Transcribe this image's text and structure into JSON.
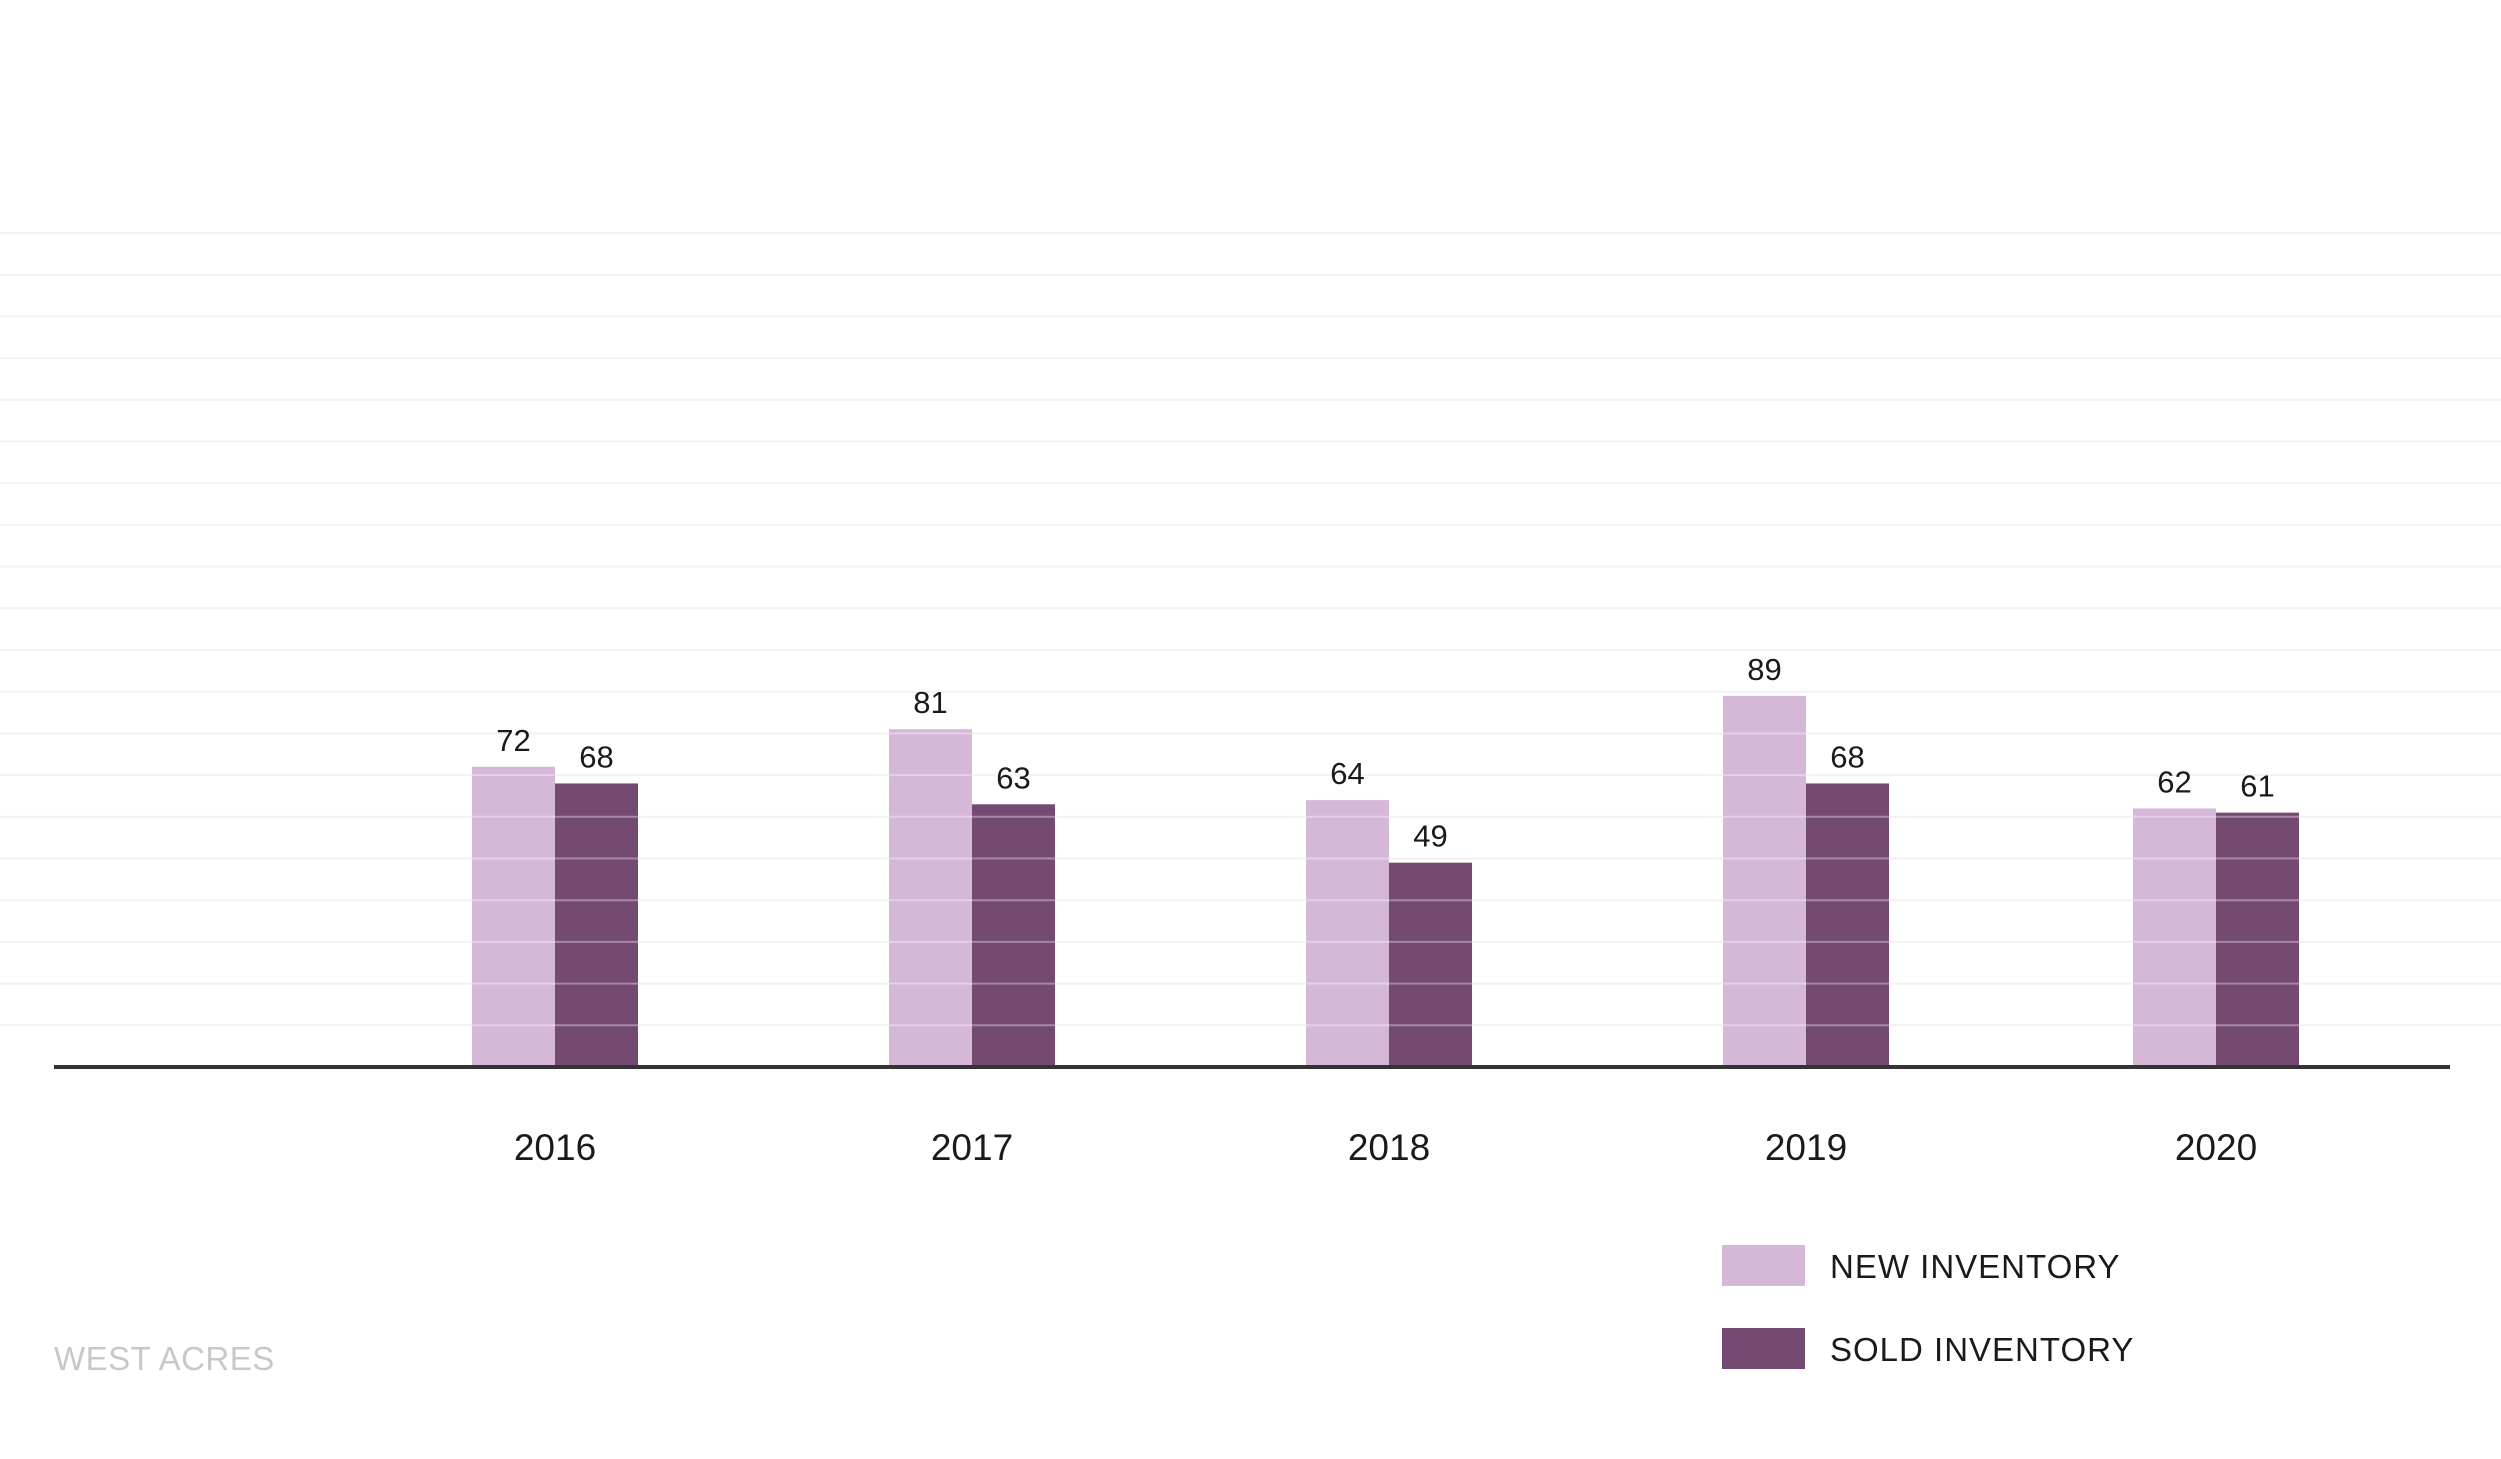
{
  "chart_data": {
    "type": "bar",
    "categories": [
      "2016",
      "2017",
      "2018",
      "2019",
      "2020"
    ],
    "series": [
      {
        "name": "NEW INVENTORY",
        "values": [
          72,
          81,
          64,
          89,
          62
        ],
        "color": "#d5b8d8"
      },
      {
        "name": "SOLD INVENTORY",
        "values": [
          68,
          63,
          49,
          68,
          61
        ],
        "color": "#744a72"
      }
    ],
    "title": "",
    "xlabel": "",
    "ylabel": "",
    "ylim": [
      0,
      200
    ],
    "grid": true,
    "gridline_step": 10,
    "legend_position": "bottom-right",
    "axis_color": "#333333",
    "grid_color": "#f2f2f2"
  },
  "caption": "WEST ACRES"
}
